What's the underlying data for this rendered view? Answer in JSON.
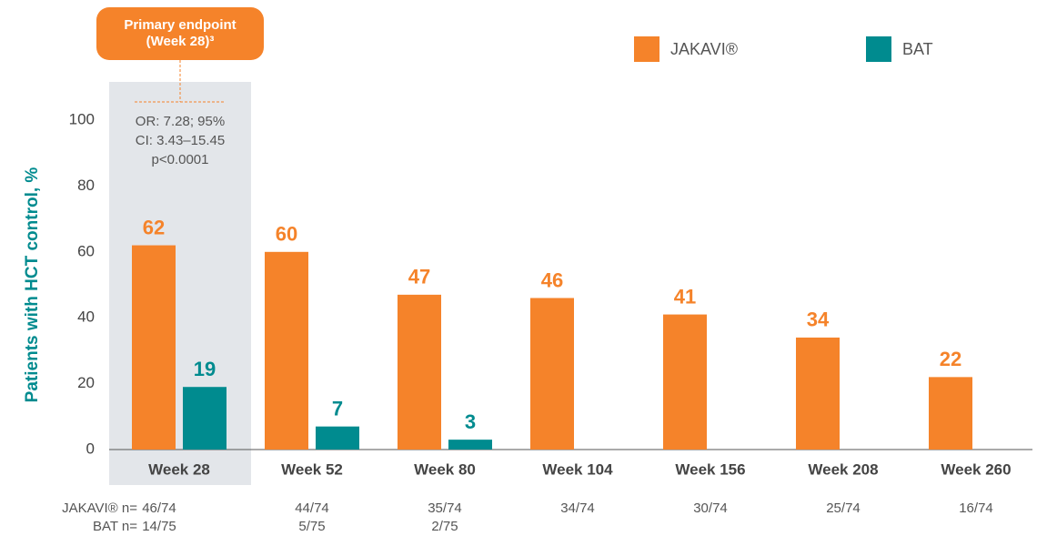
{
  "chart_data": {
    "type": "bar",
    "callout": [
      "Primary endpoint",
      "(Week 28)³"
    ],
    "annotation": [
      "OR: 7.28; 95%",
      "CI: 3.43–15.45",
      "p<0.0001"
    ],
    "y_label": "Patients with HCT control, %",
    "categories": [
      "Week 28",
      "Week 52",
      "Week 80",
      "Week 104",
      "Week 156",
      "Week 208",
      "Week 260"
    ],
    "series": [
      {
        "name": "JAKAVI®",
        "color": "#f5832a",
        "values": [
          62,
          60,
          47,
          46,
          41,
          34,
          22
        ]
      },
      {
        "name": "BAT",
        "color": "#008b8f",
        "values": [
          19,
          7,
          3,
          null,
          null,
          null,
          null
        ]
      }
    ],
    "ylim": [
      0,
      100
    ],
    "yticks": [
      0,
      20,
      40,
      60,
      80,
      100
    ],
    "n_rows": [
      {
        "label": "JAKAVI® n=",
        "values": [
          "46/74",
          "44/74",
          "35/74",
          "34/74",
          "30/74",
          "25/74",
          "16/74"
        ]
      },
      {
        "label": "BAT n=",
        "values": [
          "14/75",
          "5/75",
          "2/75",
          null,
          null,
          null,
          null
        ]
      }
    ]
  }
}
